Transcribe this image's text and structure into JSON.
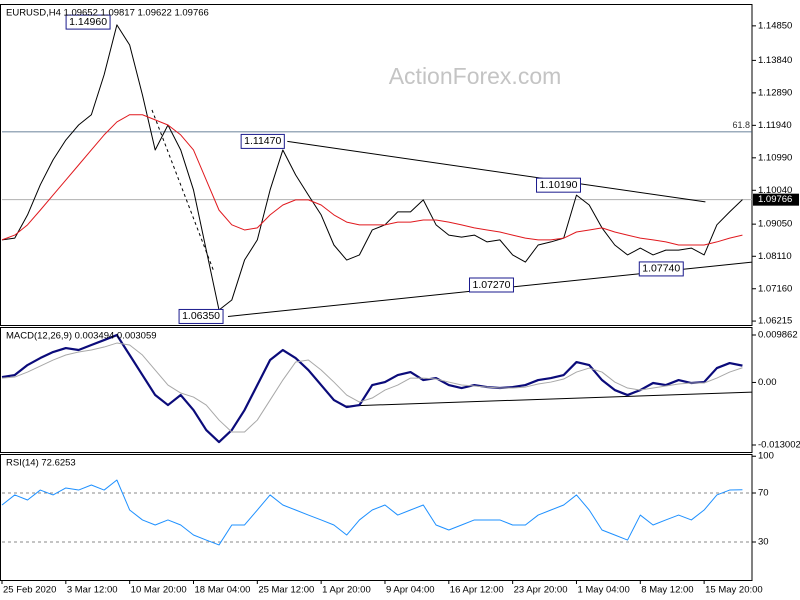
{
  "chart_data": [
    {
      "type": "line",
      "title": "EURUSD,H4  1.09652 1.09817 1.09622 1.09766",
      "watermark": "ActionForex.com",
      "x": [
        0,
        2,
        4,
        6,
        8,
        10,
        12,
        14,
        16,
        18,
        20,
        22,
        24,
        26,
        28,
        30,
        32,
        34,
        36,
        38,
        40,
        42,
        44,
        46,
        48,
        50,
        52,
        54,
        56,
        58,
        60,
        62,
        64,
        66,
        68,
        70,
        72,
        74,
        76,
        78,
        80,
        82,
        84,
        86,
        88,
        90,
        92,
        94,
        96,
        98,
        100,
        102,
        104,
        106,
        108,
        110,
        112,
        114,
        116
      ],
      "xlim": [
        0,
        117.5
      ],
      "ylim": [
        1.061,
        1.1546
      ],
      "yticks": [
        {
          "value": 1.1485,
          "label": "1.14850"
        },
        {
          "value": 1.1384,
          "label": "1.13840"
        },
        {
          "value": 1.1289,
          "label": "1.12890"
        },
        {
          "value": 1.1194,
          "label": "1.11940"
        },
        {
          "value": 1.1099,
          "label": "1.10990"
        },
        {
          "value": 1.1004,
          "label": "1.10040"
        },
        {
          "value": 1.0905,
          "label": "1.09050"
        },
        {
          "value": 1.0811,
          "label": "1.08110"
        },
        {
          "value": 1.0716,
          "label": "1.07160"
        },
        {
          "value": 1.06215,
          "label": "1.06215"
        }
      ],
      "series": [
        {
          "color": "#000000",
          "width": 1,
          "values": [
            1.0859,
            1.0864,
            1.0932,
            1.102,
            1.1093,
            1.1151,
            1.1195,
            1.1225,
            1.1342,
            1.1488,
            1.1429,
            1.1283,
            1.1122,
            1.1195,
            1.1122,
            1.1005,
            1.0829,
            1.0654,
            1.0683,
            1.08,
            1.0859,
            1.1005,
            1.1122,
            1.1049,
            1.099,
            1.0932,
            1.0844,
            1.08,
            1.0815,
            1.0888,
            1.0903,
            1.0941,
            1.0941,
            1.0976,
            1.0903,
            1.0873,
            1.0867,
            1.0873,
            1.0853,
            1.0859,
            1.0815,
            1.0794,
            1.0844,
            1.0853,
            1.0864,
            1.099,
            1.0961,
            1.0894,
            1.0844,
            1.0815,
            1.0835,
            1.0815,
            1.0829,
            1.0829,
            1.0835,
            1.0815,
            1.0903,
            1.0941,
            1.09766
          ]
        },
        {
          "color": "#e0191e",
          "width": 1,
          "values": [
            1.0859,
            1.0873,
            1.0903,
            1.0946,
            1.099,
            1.1034,
            1.1078,
            1.1122,
            1.1166,
            1.1204,
            1.1225,
            1.1225,
            1.121,
            1.1195,
            1.1166,
            1.1122,
            1.1034,
            1.0946,
            1.0903,
            1.0888,
            1.0894,
            1.0932,
            1.0961,
            1.0976,
            1.0976,
            1.0961,
            1.0932,
            1.0911,
            1.0903,
            1.0903,
            1.0903,
            1.0911,
            1.0911,
            1.0917,
            1.0917,
            1.0911,
            1.0903,
            1.0894,
            1.0888,
            1.0882,
            1.0873,
            1.0864,
            1.0859,
            1.0859,
            1.0864,
            1.0882,
            1.0888,
            1.0894,
            1.0882,
            1.0873,
            1.0864,
            1.0859,
            1.0853,
            1.0844,
            1.0844,
            1.0844,
            1.0853,
            1.0864,
            1.0873
          ]
        }
      ],
      "annotations": [
        {
          "x": 17.4,
          "value": 1.1496,
          "label": "1.14960"
        },
        {
          "x": 44.7,
          "value": 1.1147,
          "label": "1.11470"
        },
        {
          "x": 91.1,
          "value": 1.1019,
          "label": "1.10190"
        },
        {
          "x": 80.6,
          "value": 1.0727,
          "label": "1.07270"
        },
        {
          "x": 107.2,
          "value": 1.0774,
          "label": "1.07740"
        },
        {
          "x": 35.1,
          "value": 1.0635,
          "label": "1.06350"
        }
      ],
      "fib_level": {
        "y": 1.1175,
        "text": "61.8"
      },
      "last_price": {
        "value": 1.09766,
        "label": "1.09766"
      },
      "trendlines": [
        {
          "x": [
            44.7,
            110.2
          ],
          "y": [
            1.1147,
            1.097
          ]
        },
        {
          "x": [
            35.4,
            117.5
          ],
          "y": [
            1.0635,
            1.0794
          ]
        },
        {
          "x": [
            23.5,
            33.1
          ],
          "y": [
            1.1239,
            1.0771
          ],
          "style": "dashed"
        }
      ]
    },
    {
      "type": "line",
      "title": "MACD(12,26,9) 0.003494 0.003059",
      "x": [
        0,
        2,
        4,
        6,
        8,
        10,
        12,
        14,
        16,
        18,
        20,
        22,
        24,
        26,
        28,
        30,
        32,
        34,
        36,
        38,
        40,
        42,
        44,
        46,
        48,
        50,
        52,
        54,
        56,
        58,
        60,
        62,
        64,
        66,
        68,
        70,
        72,
        74,
        76,
        78,
        80,
        82,
        84,
        86,
        88,
        90,
        92,
        94,
        96,
        98,
        100,
        102,
        104,
        106,
        108,
        110,
        112,
        114,
        116
      ],
      "xlim": [
        0,
        117.5
      ],
      "ylim": [
        -0.014457,
        0.011317
      ],
      "yticks": [
        0.009862,
        {
          "value": 0,
          "label": "0.00"
        },
        -0.013002
      ],
      "series": [
        {
          "color": "#0b0b7a",
          "width": 2.2,
          "values": [
            0.00112,
            0.00154,
            0.00362,
            0.00507,
            0.00632,
            0.00715,
            0.00674,
            0.00778,
            0.00881,
            0.00985,
            0.0057,
            0.00154,
            -0.00262,
            -0.0047,
            -0.00262,
            -0.00574,
            -0.0099,
            -0.01239,
            -0.0099,
            -0.00574,
            -0.00054,
            0.00466,
            0.00674,
            0.00507,
            0.00258,
            -0.00054,
            -0.00366,
            -0.00511,
            -0.0047,
            -0.00054,
            8e-05,
            0.00154,
            0.00216,
            0.0005,
            0.00091,
            -0.00054,
            -0.00116,
            -0.00054,
            -0.00096,
            -0.00116,
            -0.00096,
            -0.00054,
            0.0005,
            0.00091,
            0.00154,
            0.00424,
            0.00362,
            0.0005,
            -0.00158,
            -0.00262,
            -0.00158,
            -0.00012,
            -0.00054,
            0.0005,
            -0.00012,
            8e-05,
            0.00299,
            0.00403,
            0.003494
          ]
        },
        {
          "color": "#a8a8a8",
          "width": 1,
          "values": [
            0.00091,
            0.00112,
            0.00216,
            0.00341,
            0.00466,
            0.0057,
            0.00632,
            0.00674,
            0.00736,
            0.00819,
            0.00778,
            0.0057,
            0.00258,
            -0.00054,
            -0.0022,
            -0.00304,
            -0.0047,
            -0.00782,
            -0.01031,
            -0.01031,
            -0.00782,
            -0.00366,
            0.0005,
            0.00424,
            0.00466,
            0.00258,
            8e-05,
            -0.00262,
            -0.00407,
            -0.00324,
            -0.00158,
            -0.00054,
            0.00091,
            0.00091,
            0.00071,
            8e-05,
            -0.00054,
            -0.00075,
            -0.00096,
            -0.00116,
            -0.00116,
            -0.00096,
            -0.00033,
            8e-05,
            0.00071,
            0.00216,
            0.00299,
            0.00216,
            8e-05,
            -0.00116,
            -0.00158,
            -0.00116,
            -0.00075,
            -0.00033,
            -0.00012,
            -0.00012,
            0.00091,
            0.00216,
            0.003059
          ]
        }
      ],
      "trendlines": [
        {
          "x": [
            53.8,
            117.5
          ],
          "y": [
            -0.00491,
            -0.002
          ]
        }
      ]
    },
    {
      "type": "line",
      "title": "RSI(14) 72.6253",
      "x": [
        0,
        2,
        4,
        6,
        8,
        10,
        12,
        14,
        16,
        18,
        20,
        22,
        24,
        26,
        28,
        30,
        32,
        34,
        36,
        38,
        40,
        42,
        44,
        46,
        48,
        50,
        52,
        54,
        56,
        58,
        60,
        62,
        64,
        66,
        68,
        70,
        72,
        74,
        76,
        78,
        80,
        82,
        84,
        86,
        88,
        90,
        92,
        94,
        96,
        98,
        100,
        102,
        104,
        106,
        108,
        110,
        112,
        114,
        116
      ],
      "xlim": [
        0,
        117.5
      ],
      "ylim": [
        -1,
        101
      ],
      "yticks": [
        100,
        70,
        30
      ],
      "levels": [
        70,
        30
      ],
      "series": [
        {
          "color": "#1e90ff",
          "width": 1,
          "values": [
            60.2,
            68.4,
            64.3,
            72.4,
            68.4,
            74.1,
            72.4,
            76.5,
            72.4,
            80.6,
            56.1,
            48,
            43.9,
            48,
            43.9,
            35.7,
            31.6,
            27.6,
            43.9,
            43.9,
            56.1,
            68.4,
            60.2,
            56.1,
            52,
            48,
            43.9,
            35.7,
            48,
            56.1,
            60.2,
            52,
            56.1,
            60.2,
            43.9,
            39.8,
            43.9,
            48,
            48,
            48,
            43.9,
            43.9,
            52,
            56.1,
            60.2,
            68.4,
            56.1,
            39.8,
            35.7,
            31.6,
            52,
            43.9,
            48,
            52,
            48,
            56.1,
            68.4,
            72.4,
            72.6253
          ]
        }
      ],
      "xticks": [
        {
          "value": 0,
          "label": "25 Feb 2020"
        },
        {
          "value": 10,
          "label": "3 Mar 12:00"
        },
        {
          "value": 20,
          "label": "10 Mar 20:00"
        },
        {
          "value": 30,
          "label": "18 Mar 04:00"
        },
        {
          "value": 40,
          "label": "25 Mar 12:00"
        },
        {
          "value": 50,
          "label": "1 Apr 20:00"
        },
        {
          "value": 60,
          "label": "9 Apr 04:00"
        },
        {
          "value": 70,
          "label": "16 Apr 12:00"
        },
        {
          "value": 80,
          "label": "23 Apr 20:00"
        },
        {
          "value": 90,
          "label": "1 May 04:00"
        },
        {
          "value": 100,
          "label": "8 May 12:00"
        },
        {
          "value": 110,
          "label": "15 May 20:00"
        }
      ]
    }
  ]
}
